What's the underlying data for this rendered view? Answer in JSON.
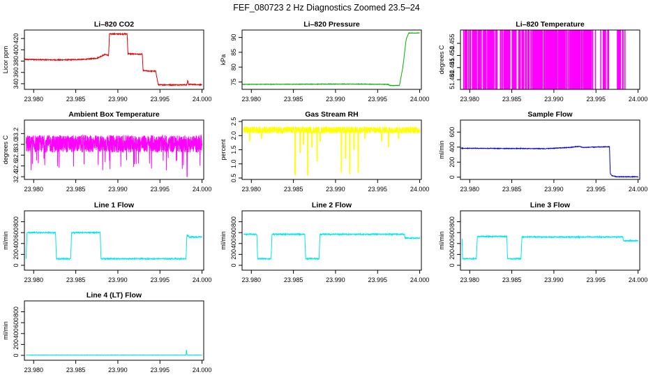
{
  "figure": {
    "title": "FEF_080723  2 Hz Diagnostics Zoomed 23.5–24"
  },
  "chart_data": [
    {
      "id": "co2",
      "type": "line",
      "title": "Li–820 CO2",
      "ylabel": "Licor ppm",
      "xlabel": "",
      "color": "#e00000",
      "xlim": [
        23.9789,
        24.0002
      ],
      "ylim": [
        330,
        435
      ],
      "xticks": [
        "23.980",
        "23.985",
        "23.990",
        "23.995",
        "24.000"
      ],
      "yticks": [
        "340",
        "360",
        "380",
        "400",
        "420"
      ],
      "noise": 0.8,
      "series": [
        {
          "x": [
            23.9789,
            23.983,
            23.986,
            23.9875,
            23.9885,
            23.9889,
            23.989,
            23.9891,
            23.9911,
            23.9912,
            23.9929,
            23.993,
            23.9945,
            23.9948,
            23.9982,
            23.9983,
            23.9984,
            24.0
          ],
          "y": [
            383,
            382,
            383,
            385,
            392,
            390,
            428,
            428,
            428,
            393,
            392,
            363,
            362,
            338,
            338,
            346,
            339,
            338
          ]
        }
      ]
    },
    {
      "id": "pressure",
      "type": "line",
      "title": "Li–820 Pressure",
      "ylabel": "kPa",
      "xlabel": "",
      "color": "#00b000",
      "xlim": [
        23.9789,
        24.0002
      ],
      "ylim": [
        72.5,
        92.5
      ],
      "xticks": [
        "23.980",
        "23.985",
        "23.990",
        "23.995",
        "24.000"
      ],
      "yticks": [
        "75",
        "80",
        "85",
        "90"
      ],
      "noise": 0.08,
      "series": [
        {
          "x": [
            23.9789,
            23.992,
            23.9963,
            23.9964,
            23.9976,
            23.998,
            23.9984,
            23.9987,
            24.0
          ],
          "y": [
            74.2,
            74.3,
            74.2,
            73.8,
            73.8,
            80,
            89.5,
            91.5,
            91.5
          ]
        }
      ]
    },
    {
      "id": "licor-temp",
      "type": "line",
      "title": "Li–820 Temperature",
      "ylabel": "degrees C",
      "xlabel": "",
      "color": "#ff00ff",
      "xlim": [
        23.9789,
        24.0002
      ],
      "ylim": [
        51.436,
        51.4605
      ],
      "xticks": [
        "23.980",
        "23.985",
        "23.990",
        "23.995",
        "24.000"
      ],
      "yticks": [
        "51.440",
        "51.445",
        "51.450",
        "51.455"
      ],
      "low": 51.436,
      "high": 51.4605,
      "spike_ranges": [
        [
          23.9792,
          23.9815,
          0.35
        ],
        [
          23.9815,
          23.9865,
          0.25
        ],
        [
          23.9865,
          23.9945,
          0.45
        ],
        [
          23.9945,
          23.9965,
          0.2
        ],
        [
          23.9975,
          23.9985,
          0.3
        ]
      ]
    },
    {
      "id": "box-temp",
      "type": "line",
      "title": "Ambient Box Temperature",
      "ylabel": "degrees C",
      "xlabel": "",
      "color": "#ff00ff",
      "xlim": [
        23.9789,
        24.0002
      ],
      "ylim": [
        32.35,
        33.45
      ],
      "xticks": [
        "23.980",
        "23.985",
        "23.990",
        "23.995",
        "24.000"
      ],
      "yticks": [
        "32.4",
        "32.6",
        "32.8",
        "33.0",
        "33.2"
      ],
      "noise": 0.16,
      "base": 33.01
    },
    {
      "id": "rh",
      "type": "line",
      "title": "Gas Stream RH",
      "ylabel": "percent",
      "xlabel": "",
      "color": "#ffff00",
      "xlim": [
        23.9789,
        24.0002
      ],
      "ylim": [
        0.45,
        2.55
      ],
      "xticks": [
        "23.980",
        "23.985",
        "23.990",
        "23.995",
        "24.000"
      ],
      "yticks": [
        "0.5",
        "1.0",
        "1.5",
        "2.0",
        "2.5"
      ],
      "noise": 0.12,
      "base": 2.2,
      "dips": [
        [
          23.9798,
          1.8
        ],
        [
          23.9812,
          1.9
        ],
        [
          23.9852,
          0.62
        ],
        [
          23.9858,
          1.4
        ],
        [
          23.9862,
          1.7
        ],
        [
          23.9867,
          0.6
        ],
        [
          23.9872,
          1.6
        ],
        [
          23.9878,
          1.1
        ],
        [
          23.9882,
          1.8
        ],
        [
          23.9907,
          0.7
        ],
        [
          23.9912,
          1.2
        ],
        [
          23.9917,
          0.65
        ],
        [
          23.9922,
          1.5
        ],
        [
          23.9927,
          0.7
        ],
        [
          23.9935,
          1.9
        ],
        [
          23.9955,
          1.8
        ],
        [
          23.9963,
          1.6
        ],
        [
          23.9975,
          1.9
        ]
      ]
    },
    {
      "id": "sample-flow",
      "type": "line",
      "title": "Sample Flow",
      "ylabel": "ml/min",
      "xlabel": "",
      "color": "#0000cc",
      "xlim": [
        23.9789,
        24.0002
      ],
      "ylim": [
        -30,
        760
      ],
      "xticks": [
        "23.980",
        "23.985",
        "23.990",
        "23.995",
        "24.000"
      ],
      "yticks": [
        "0",
        "200",
        "400",
        "600"
      ],
      "noise": 4,
      "series": [
        {
          "x": [
            23.9789,
            23.989,
            23.9918,
            23.993,
            23.9935,
            23.9946,
            23.9966,
            23.9967,
            23.9969,
            23.9975,
            24.0
          ],
          "y": [
            385,
            380,
            395,
            410,
            395,
            400,
            405,
            50,
            20,
            5,
            5
          ]
        }
      ]
    },
    {
      "id": "line1",
      "type": "line",
      "title": "Line 1 Flow",
      "ylabel": "ml/min",
      "xlabel": "",
      "color": "#00e5ee",
      "xlim": [
        23.9789,
        24.0002
      ],
      "ylim": [
        -90,
        1000
      ],
      "xticks": [
        "23.980",
        "23.985",
        "23.990",
        "23.995",
        "24.000"
      ],
      "yticks": [
        "0",
        "200",
        "400",
        "600",
        "800"
      ],
      "noise": 10,
      "series": [
        {
          "x": [
            23.9791,
            23.9792,
            23.9826,
            23.9827,
            23.9844,
            23.9845,
            23.9879,
            23.988,
            23.9981,
            23.9982,
            23.9985,
            24.0
          ],
          "y": [
            120,
            600,
            600,
            120,
            120,
            600,
            600,
            120,
            120,
            560,
            520,
            520
          ]
        }
      ]
    },
    {
      "id": "line2",
      "type": "line",
      "title": "Line 2 Flow",
      "ylabel": "ml/min",
      "xlabel": "",
      "color": "#00e5ee",
      "xlim": [
        23.9789,
        24.0002
      ],
      "ylim": [
        -90,
        1000
      ],
      "xticks": [
        "23.980",
        "23.985",
        "23.990",
        "23.995",
        "24.000"
      ],
      "yticks": [
        "0",
        "200",
        "400",
        "600",
        "800"
      ],
      "noise": 10,
      "series": [
        {
          "x": [
            23.9791,
            23.98065,
            23.98075,
            23.98235,
            23.98245,
            23.98635,
            23.98645,
            23.98805,
            23.98815,
            23.9982,
            23.99825,
            24.0
          ],
          "y": [
            570,
            570,
            120,
            120,
            570,
            570,
            120,
            120,
            570,
            570,
            500,
            500
          ]
        }
      ]
    },
    {
      "id": "line3",
      "type": "line",
      "title": "Line 3 Flow",
      "ylabel": "ml/min",
      "xlabel": "",
      "color": "#00e5ee",
      "xlim": [
        23.9789,
        24.0002
      ],
      "ylim": [
        -90,
        1000
      ],
      "xticks": [
        "23.980",
        "23.985",
        "23.990",
        "23.995",
        "24.000"
      ],
      "yticks": [
        "0",
        "200",
        "400",
        "600",
        "800"
      ],
      "noise": 10,
      "series": [
        {
          "x": [
            23.9791,
            23.97915,
            23.9808,
            23.9809,
            23.9844,
            23.9845,
            23.9861,
            23.9862,
            23.9982,
            23.99825,
            24.0
          ],
          "y": [
            480,
            120,
            120,
            530,
            530,
            120,
            120,
            520,
            520,
            450,
            450
          ]
        }
      ]
    },
    {
      "id": "line4",
      "type": "line",
      "title": "Line 4 (LT) Flow",
      "ylabel": "ml/min",
      "xlabel": "",
      "color": "#00e5ee",
      "xlim": [
        23.9789,
        24.0002
      ],
      "ylim": [
        -90,
        1000
      ],
      "xticks": [
        "23.980",
        "23.985",
        "23.990",
        "23.995",
        "24.000"
      ],
      "yticks": [
        "0",
        "200",
        "400",
        "600",
        "800"
      ],
      "noise": 3,
      "series": [
        {
          "x": [
            23.9791,
            23.9981,
            23.99815,
            23.9982,
            23.99825,
            24.0
          ],
          "y": [
            5,
            5,
            120,
            30,
            5,
            5
          ]
        }
      ]
    }
  ]
}
